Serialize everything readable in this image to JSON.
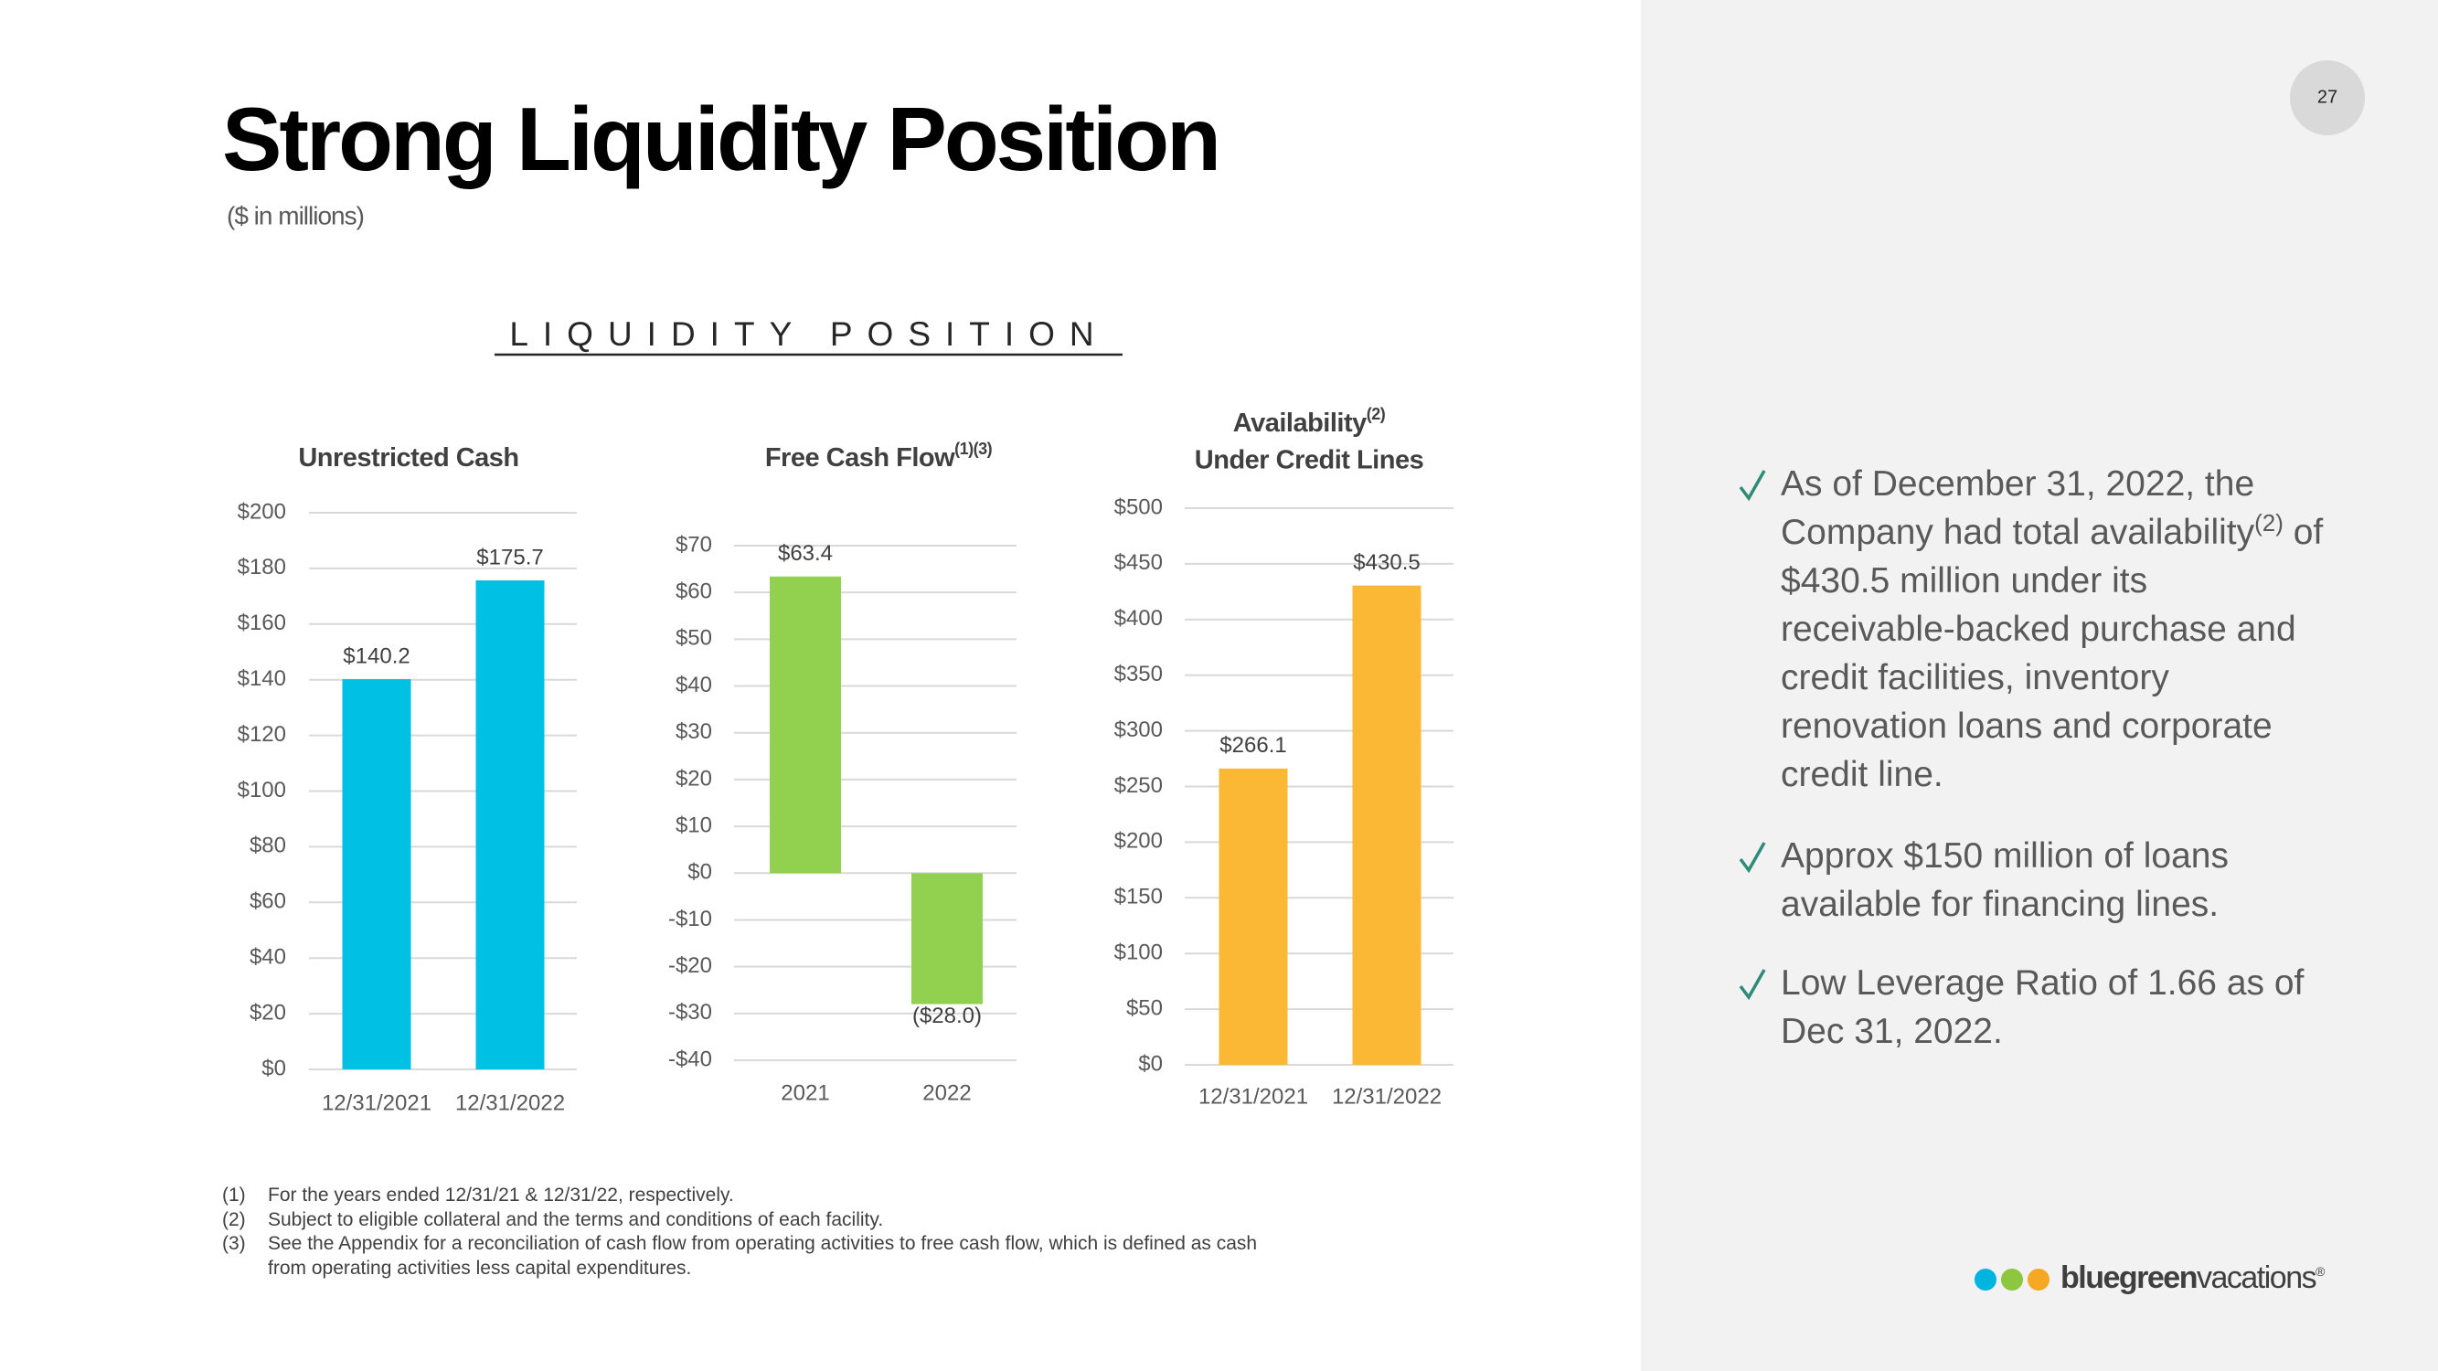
{
  "title": "Strong Liquidity Position",
  "subtitle": "($ in millions)",
  "section_title": "LIQUIDITY POSITION",
  "page_number": "27",
  "chart_data": [
    {
      "type": "bar",
      "title": "Unrestricted Cash",
      "categories": [
        "12/31/2021",
        "12/31/2022"
      ],
      "values": [
        140.2,
        175.7
      ],
      "value_labels": [
        "$140.2",
        "$175.7"
      ],
      "color": "#00c0e3",
      "ylim": [
        0,
        200
      ],
      "yticks": [
        {
          "value": 0,
          "label": "$0"
        },
        {
          "value": 20,
          "label": "$20"
        },
        {
          "value": 40,
          "label": "$40"
        },
        {
          "value": 60,
          "label": "$60"
        },
        {
          "value": 80,
          "label": "$80"
        },
        {
          "value": 100,
          "label": "$100"
        },
        {
          "value": 120,
          "label": "$120"
        },
        {
          "value": 140,
          "label": "$140"
        },
        {
          "value": 160,
          "label": "$160"
        },
        {
          "value": 180,
          "label": "$180"
        },
        {
          "value": 200,
          "label": "$200"
        }
      ],
      "grid": true
    },
    {
      "type": "bar",
      "title": "Free Cash Flow",
      "title_superscript": "(1)(3)",
      "categories": [
        "2021",
        "2022"
      ],
      "values": [
        63.4,
        -28.0
      ],
      "value_labels": [
        "$63.4",
        "($28.0)"
      ],
      "color": "#92d050",
      "ylim": [
        -40,
        70
      ],
      "yticks": [
        {
          "value": -40,
          "label": "-$40"
        },
        {
          "value": -30,
          "label": "-$30"
        },
        {
          "value": -20,
          "label": "-$20"
        },
        {
          "value": -10,
          "label": "-$10"
        },
        {
          "value": 0,
          "label": "$0"
        },
        {
          "value": 10,
          "label": "$10"
        },
        {
          "value": 20,
          "label": "$20"
        },
        {
          "value": 30,
          "label": "$30"
        },
        {
          "value": 40,
          "label": "$40"
        },
        {
          "value": 50,
          "label": "$50"
        },
        {
          "value": 60,
          "label": "$60"
        },
        {
          "value": 70,
          "label": "$70"
        }
      ],
      "grid": true
    },
    {
      "type": "bar",
      "title": "Availability",
      "title_superscript": "(2)",
      "title_line2": "Under Credit Lines",
      "categories": [
        "12/31/2021",
        "12/31/2022"
      ],
      "values": [
        266.1,
        430.5
      ],
      "value_labels": [
        "$266.1",
        "$430.5"
      ],
      "color": "#fbb834",
      "ylim": [
        0,
        500
      ],
      "yticks": [
        {
          "value": 0,
          "label": "$0"
        },
        {
          "value": 50,
          "label": "$50"
        },
        {
          "value": 100,
          "label": "$100"
        },
        {
          "value": 150,
          "label": "$150"
        },
        {
          "value": 200,
          "label": "$200"
        },
        {
          "value": 250,
          "label": "$250"
        },
        {
          "value": 300,
          "label": "$300"
        },
        {
          "value": 350,
          "label": "$350"
        },
        {
          "value": 400,
          "label": "$400"
        },
        {
          "value": 450,
          "label": "$450"
        },
        {
          "value": 500,
          "label": "$500"
        }
      ],
      "grid": true
    }
  ],
  "bullets": [
    {
      "text": "As of December 31, 2022, the Company had total availability",
      "superscript": "(2)",
      "text_after": " of $430.5 million under its receivable-backed purchase and credit facilities, inventory renovation loans and corporate credit line."
    },
    {
      "text": "Approx $150 million of loans available for financing lines."
    },
    {
      "text": "Low Leverage Ratio of 1.66 as of Dec 31, 2022."
    }
  ],
  "footnotes": [
    {
      "marker": "(1)",
      "text": "For the years ended 12/31/21 & 12/31/22, respectively."
    },
    {
      "marker": "(2)",
      "text": "Subject to eligible collateral and the terms and conditions of each facility."
    },
    {
      "marker": "(3)",
      "text": "See the Appendix for a reconciliation of cash flow from operating activities to free cash flow, which is defined as cash from operating activities less capital expenditures."
    }
  ],
  "logo": {
    "bold": "bluegreen",
    "light": "vacations",
    "mark": "®"
  }
}
